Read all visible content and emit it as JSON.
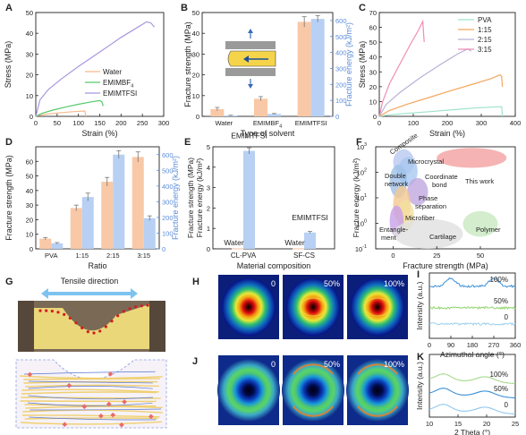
{
  "colors": {
    "pva": "#9FE3C8",
    "r115": "#F4A65C",
    "r215": "#B7B2D6",
    "r315": "#F28BB5",
    "water": "#F7B98A",
    "emimbf4": "#54C96A",
    "emimtfsi": "#A996E0",
    "strength": "#F9C8A6",
    "energy": "#B7D0F3"
  },
  "panels": [
    {
      "label": "A"
    },
    {
      "label": "B"
    },
    {
      "label": "C"
    },
    {
      "label": "D"
    },
    {
      "label": "E"
    },
    {
      "label": "F"
    },
    {
      "label": "G"
    },
    {
      "label": "H"
    },
    {
      "label": "I"
    },
    {
      "label": "J"
    },
    {
      "label": "K"
    }
  ],
  "chart_data": [
    {
      "panel": "A",
      "type": "line",
      "xlabel": "Strain (%)",
      "ylabel": "Stress (MPa)",
      "xlim": [
        0,
        300
      ],
      "ylim": [
        0,
        50
      ],
      "xticks": [
        0,
        50,
        100,
        150,
        200,
        250,
        300
      ],
      "yticks": [
        0,
        10,
        20,
        30,
        40,
        50
      ],
      "legend": "center-right",
      "series": [
        {
          "name": "Water",
          "color": "#F7B98A",
          "x": [
            0,
            10,
            30,
            60,
            90,
            115,
            118
          ],
          "y": [
            0,
            0.6,
            1.2,
            1.8,
            2.3,
            2.6,
            0
          ]
        },
        {
          "name": "EMIMBF4",
          "legend_label_parts": [
            "EMIMBF",
            "4"
          ],
          "color": "#54C96A",
          "x": [
            0,
            15,
            40,
            70,
            100,
            130,
            150,
            155,
            158
          ],
          "y": [
            0,
            1.5,
            3,
            4.5,
            5.8,
            7,
            7.6,
            7,
            5
          ]
        },
        {
          "name": "EMIMTFSI",
          "color": "#A996E0",
          "x": [
            0,
            10,
            30,
            60,
            100,
            150,
            200,
            240,
            260,
            270,
            278
          ],
          "y": [
            0,
            8,
            13,
            18,
            24,
            31,
            38,
            43,
            45.5,
            45,
            43
          ]
        }
      ]
    },
    {
      "panel": "B",
      "type": "bar",
      "xlabel": "Type of solvent",
      "ylabel": "Fracture strength (MPa)",
      "y2label": "Fracture energy (kJ/m²)",
      "categories": [
        "Water",
        "EMIMBF4",
        "EMIMTFSI"
      ],
      "category_label_parts": [
        [
          "Water",
          ""
        ],
        [
          "EMIMBF",
          "4"
        ],
        [
          "EMIMTFSI",
          ""
        ]
      ],
      "ylim": [
        0,
        50
      ],
      "y2lim": [
        0,
        650
      ],
      "yticks": [
        0,
        10,
        20,
        30,
        40,
        50
      ],
      "y2ticks": [
        0,
        100,
        200,
        300,
        400,
        500,
        600
      ],
      "series": [
        {
          "name": "Fracture strength",
          "axis": "left",
          "color": "#F9C8A6",
          "values": [
            3.5,
            8.5,
            45.5
          ],
          "errors": [
            0.8,
            1.0,
            2.5
          ]
        },
        {
          "name": "Fracture energy",
          "axis": "right",
          "color": "#B7D0F3",
          "values": [
            5,
            15,
            610
          ],
          "errors": [
            2,
            3,
            20
          ]
        }
      ]
    },
    {
      "panel": "C",
      "type": "line",
      "xlabel": "Strain (%)",
      "ylabel": "Stress (MPa)",
      "xlim": [
        0,
        400
      ],
      "ylim": [
        0,
        70
      ],
      "xticks": [
        0,
        100,
        200,
        300,
        400
      ],
      "yticks": [
        0,
        10,
        20,
        30,
        40,
        50,
        60,
        70
      ],
      "legend": "top-right",
      "series": [
        {
          "name": "PVA",
          "color": "#9FE3C8",
          "x": [
            0,
            30,
            80,
            150,
            220,
            280,
            330,
            360,
            362
          ],
          "y": [
            0,
            1,
            2,
            3.2,
            4.5,
            5.6,
            6.2,
            6.5,
            0
          ]
        },
        {
          "name": "1:15",
          "color": "#F4A65C",
          "x": [
            0,
            30,
            80,
            150,
            220,
            280,
            330,
            355,
            360,
            362
          ],
          "y": [
            0,
            4,
            8,
            13,
            18,
            22,
            25.5,
            28,
            27,
            20
          ]
        },
        {
          "name": "2:15",
          "color": "#B7B2D6",
          "x": [
            0,
            20,
            60,
            120,
            180,
            230,
            260,
            270
          ],
          "y": [
            0,
            8,
            16,
            26,
            35,
            42,
            45.5,
            44
          ]
        },
        {
          "name": "3:15",
          "color": "#F28BB5",
          "x": [
            0,
            10,
            30,
            60,
            90,
            115,
            128,
            132
          ],
          "y": [
            0,
            10,
            22,
            35,
            48,
            58,
            64,
            50
          ]
        }
      ]
    },
    {
      "panel": "D",
      "type": "bar",
      "xlabel": "Ratio",
      "ylabel": "Fracture strength (MPa)",
      "y2label": "Fracture energy (kJ/m²)",
      "categories": [
        "PVA",
        "1:15",
        "2:15",
        "3:15"
      ],
      "ylim": [
        0,
        70
      ],
      "y2lim": [
        0,
        650
      ],
      "yticks": [
        0,
        10,
        20,
        30,
        40,
        50,
        60
      ],
      "y2ticks": [
        0,
        100,
        200,
        300,
        400,
        500,
        600
      ],
      "series": [
        {
          "name": "Fracture strength",
          "axis": "left",
          "color": "#F9C8A6",
          "values": [
            7,
            28,
            46,
            63
          ],
          "errors": [
            0.8,
            2,
            3,
            3.5
          ]
        },
        {
          "name": "Fracture energy",
          "axis": "right",
          "color": "#B7D0F3",
          "values": [
            35,
            330,
            600,
            195
          ],
          "errors": [
            5,
            25,
            25,
            15
          ]
        }
      ]
    },
    {
      "panel": "E",
      "type": "bar",
      "xlabel": "Material composition",
      "ylabel": "Fracture strength (MPa)",
      "y2label": "Fracture energy (kJ/m²)",
      "categories": [
        "CL-PVA",
        "SF-CS"
      ],
      "ylim": [
        0,
        5
      ],
      "yticks": [
        0,
        1,
        2,
        3,
        4,
        5
      ],
      "annotations": {
        "bar_top": [
          "EMIMTFSI",
          "EMIMTFSI"
        ],
        "bar_base": [
          "Water",
          "Water"
        ]
      },
      "series": [
        {
          "name": "Water",
          "color": "#F9C8A6",
          "values": [
            0.02,
            0.02
          ]
        },
        {
          "name": "EMIMTFSI",
          "color": "#B7D0F3",
          "values": [
            4.8,
            0.8
          ],
          "errors": [
            0.15,
            0.05
          ]
        }
      ]
    },
    {
      "panel": "F",
      "type": "scatter",
      "xlabel": "Fracture strength (MPa)",
      "ylabel": "Fracture energy (kJ/m²)",
      "xlim": [
        -10,
        70
      ],
      "xticks": [
        0,
        25,
        50
      ],
      "ylog": true,
      "ylim": [
        0.1,
        1000
      ],
      "ytick_labels": [
        [
          "10",
          "3"
        ],
        [
          "10",
          "2"
        ],
        [
          "10",
          "1"
        ],
        [
          "10",
          "0"
        ],
        [
          "10",
          "-1"
        ]
      ],
      "regions": [
        {
          "name": "This work",
          "color": "#F4A0A0",
          "x": [
            25,
            65
          ],
          "y": [
            150,
            900
          ]
        },
        {
          "name": "Composite",
          "color": "#B8C8F0",
          "x": [
            0,
            12
          ],
          "y": [
            80,
            800
          ]
        },
        {
          "name": "Microcrystal",
          "color": "#A8C8F0",
          "x": [
            3,
            14
          ],
          "y": [
            30,
            400
          ]
        },
        {
          "name": "Double network",
          "color": "#9FC0E8",
          "x": [
            -2,
            8
          ],
          "y": [
            10,
            200
          ]
        },
        {
          "name": "Coordinate bond",
          "color": "#C0A8E0",
          "x": [
            8,
            20
          ],
          "y": [
            5,
            60
          ]
        },
        {
          "name": "Phase separation",
          "color": "#F4C890",
          "x": [
            0,
            10
          ],
          "y": [
            1,
            30
          ]
        },
        {
          "name": "Microfiber",
          "color": "#F4E0A0",
          "x": [
            2,
            12
          ],
          "y": [
            0.5,
            8
          ]
        },
        {
          "name": "Entanglement",
          "color": "#C8A0E8",
          "x": [
            -2,
            6
          ],
          "y": [
            0.3,
            5
          ]
        },
        {
          "name": "Polymer",
          "color": "#C8E8C0",
          "x": [
            40,
            60
          ],
          "y": [
            0.3,
            3
          ]
        },
        {
          "name": "Cartilage",
          "color": "#E0E0E0",
          "x": [
            0,
            40
          ],
          "y": [
            0.1,
            1.5
          ]
        }
      ]
    },
    {
      "panel": "I",
      "type": "line",
      "xlabel": "Azimuthal angle (°)",
      "ylabel": "Intensity (a.u.)",
      "xlim": [
        0,
        360
      ],
      "xticks": [
        0,
        90,
        180,
        270,
        360
      ],
      "series": [
        {
          "name": "100%",
          "color": "#3A8FD6"
        },
        {
          "name": "50%",
          "color": "#8FD46A"
        },
        {
          "name": "0",
          "color": "#9CD0EE"
        }
      ]
    },
    {
      "panel": "K",
      "type": "line",
      "xlabel": "2 Theta (°)",
      "ylabel": "Intensity (a.u.)",
      "xlim": [
        10,
        25
      ],
      "xticks": [
        10,
        15,
        20,
        25
      ],
      "series": [
        {
          "name": "100%",
          "color": "#A4D98A"
        },
        {
          "name": "50%",
          "color": "#3A8FD6"
        },
        {
          "name": "0",
          "color": "#8FC8EE"
        }
      ]
    }
  ],
  "panel_g": {
    "title": "Tensile direction"
  },
  "panel_h": {
    "labels": [
      "0",
      "50%",
      "100%"
    ]
  },
  "panel_j": {
    "labels": [
      "0",
      "50%",
      "100%"
    ]
  }
}
